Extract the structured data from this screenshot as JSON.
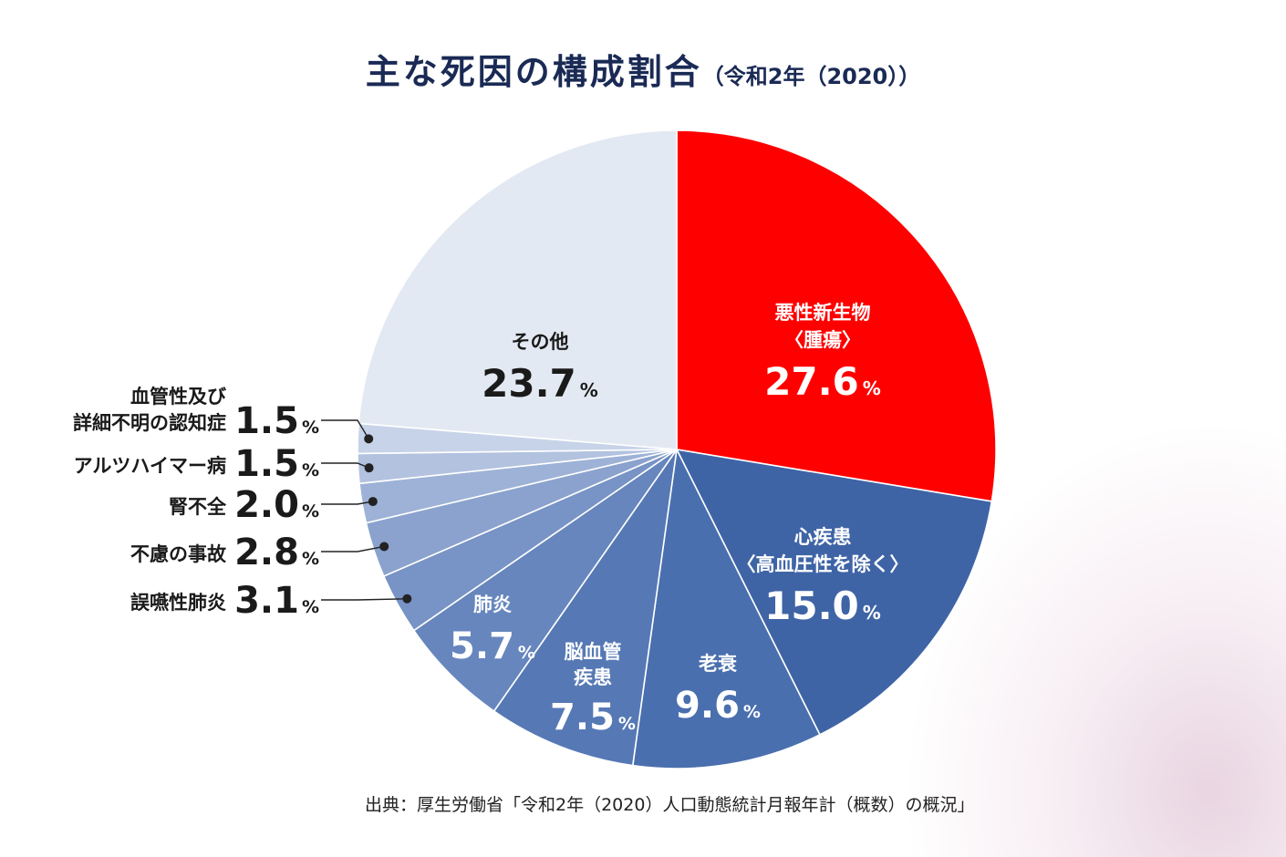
{
  "title": "主な死因の構成割合",
  "subtitle": "（令和2年（2020））",
  "source": "出典：厚生労働省「令和2年（2020）人口動態統計月報年計（概数）の概況」",
  "colors": {
    "title": "#1a2a55",
    "highlight": "#ff0000",
    "slice_blue_dark": "#3f64a6",
    "other": "#e3e9f2",
    "label_dark": "#1a1a1a",
    "label_light": "#ffffff"
  },
  "chart_data": {
    "type": "pie",
    "unit": "%",
    "slices": [
      {
        "label_lines": [
          "悪性新生物",
          "〈腫瘍〉"
        ],
        "value": 27.6,
        "color": "#ff0000",
        "label_color": "#ffffff",
        "placement": "inside"
      },
      {
        "label_lines": [
          "心疾患",
          "〈高血圧性を除く〉"
        ],
        "value": 15.0,
        "color": "#3f64a6",
        "label_color": "#ffffff",
        "placement": "inside"
      },
      {
        "label_lines": [
          "老衰"
        ],
        "value": 9.6,
        "color": "#4a6fae",
        "label_color": "#ffffff",
        "placement": "inside"
      },
      {
        "label_lines": [
          "脳血管",
          "疾患"
        ],
        "value": 7.5,
        "color": "#5679b5",
        "label_color": "#ffffff",
        "placement": "inside"
      },
      {
        "label_lines": [
          "肺炎"
        ],
        "value": 5.7,
        "color": "#6686bd",
        "label_color": "#ffffff",
        "placement": "inside"
      },
      {
        "label_lines": [
          "誤嚥性肺炎"
        ],
        "value": 3.1,
        "color": "#7893c5",
        "label_color": "#1a1a1a",
        "placement": "outside"
      },
      {
        "label_lines": [
          "不慮の事故"
        ],
        "value": 2.8,
        "color": "#8aa2cd",
        "label_color": "#1a1a1a",
        "placement": "outside"
      },
      {
        "label_lines": [
          "腎不全"
        ],
        "value": 2.0,
        "color": "#9db2d6",
        "label_color": "#1a1a1a",
        "placement": "outside"
      },
      {
        "label_lines": [
          "アルツハイマー病"
        ],
        "value": 1.5,
        "color": "#b2c2df",
        "label_color": "#1a1a1a",
        "placement": "outside"
      },
      {
        "label_lines": [
          "血管性及び",
          "詳細不明の認知症"
        ],
        "value": 1.5,
        "color": "#c7d3e8",
        "label_color": "#1a1a1a",
        "placement": "outside"
      },
      {
        "label_lines": [
          "その他"
        ],
        "value": 23.7,
        "color": "#e3e9f2",
        "label_color": "#1a1a1a",
        "placement": "inside"
      }
    ]
  }
}
